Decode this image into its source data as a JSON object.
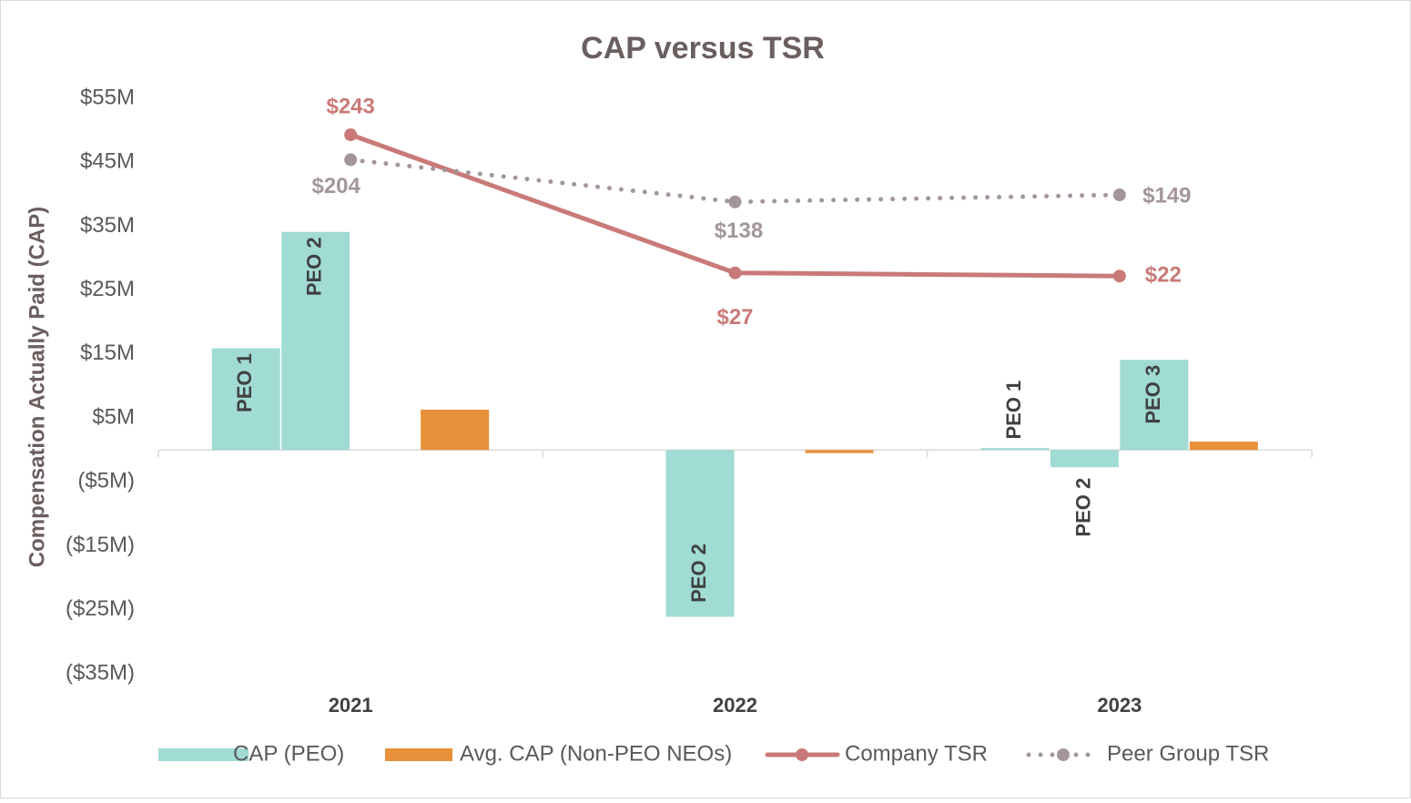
{
  "chart_data": {
    "type": "combo",
    "title": "CAP versus TSR",
    "y_label": "Compensation Actually Paid (CAP)",
    "categories": [
      "2021",
      "2022",
      "2023"
    ],
    "ylim": [
      -35,
      55
    ],
    "yticks": [
      {
        "value": 55,
        "label": "$55M"
      },
      {
        "value": 45,
        "label": "$45M"
      },
      {
        "value": 35,
        "label": "$35M"
      },
      {
        "value": 25,
        "label": "$25M"
      },
      {
        "value": 15,
        "label": "$15M"
      },
      {
        "value": 5,
        "label": "$5M"
      },
      {
        "value": -5,
        "label": "($5M)"
      },
      {
        "value": -15,
        "label": "($15M)"
      },
      {
        "value": -25,
        "label": "($25M)"
      },
      {
        "value": -35,
        "label": "($35M)"
      }
    ],
    "y2lim": [
      -600,
      300
    ],
    "series": [
      {
        "name": "CAP (PEO)",
        "type": "bar",
        "color": "#a0dbd4",
        "bar_labels": [
          "PEO 1",
          "PEO 2",
          "PEO 3"
        ],
        "values": [
          [
            15.9,
            34.1,
            null
          ],
          [
            null,
            -26.1,
            null
          ],
          [
            0.3,
            -2.7,
            14.1
          ]
        ]
      },
      {
        "name": "Avg. CAP (Non-PEO NEOs)",
        "type": "bar",
        "color": "#e8913a",
        "values": [
          6.3,
          -0.5,
          1.3
        ]
      },
      {
        "name": "Company TSR",
        "type": "line",
        "axis": "y2",
        "color": "#c97a78",
        "line_style": "solid",
        "values": [
          243,
          27,
          22
        ],
        "value_labels": [
          "$243",
          "$27",
          "$22"
        ]
      },
      {
        "name": "Peer Group TSR",
        "type": "line",
        "axis": "y2",
        "color": "#a39699",
        "line_style": "dotted",
        "values": [
          204,
          138,
          149
        ],
        "value_labels": [
          "$204",
          "$138",
          "$149"
        ]
      }
    ]
  }
}
